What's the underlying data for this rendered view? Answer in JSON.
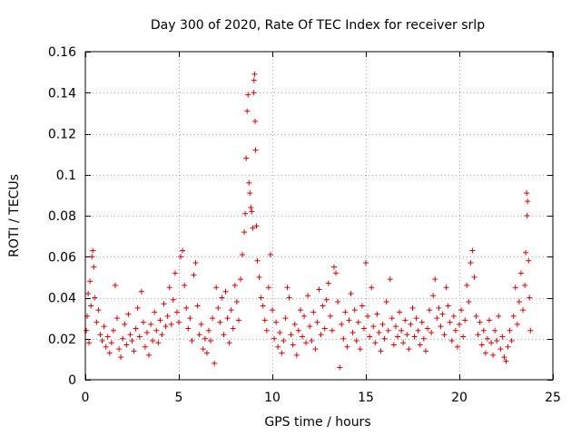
{
  "chart_data": {
    "type": "scatter",
    "title": "Day 300 of 2020, Rate Of TEC Index for receiver srlp",
    "xlabel": "GPS time / hours",
    "ylabel": "ROTI / TECUs",
    "xlim": [
      0,
      25
    ],
    "ylim": [
      0,
      0.16
    ],
    "xticks": [
      0,
      5,
      10,
      15,
      20,
      25
    ],
    "xtick_labels": [
      "0",
      "5",
      "10",
      "15",
      "20",
      "25"
    ],
    "yticks": [
      0,
      0.02,
      0.04,
      0.06,
      0.08,
      0.1,
      0.12,
      0.14,
      0.16
    ],
    "ytick_labels": [
      "0",
      "0.02",
      "0.04",
      "0.06",
      "0.08",
      "0.1",
      "0.12",
      "0.14",
      "0.16"
    ],
    "grid": true,
    "marker": "+",
    "series": [
      {
        "name": "ROTI",
        "color": "#e00000",
        "points": [
          [
            0.05,
            0.024
          ],
          [
            0.1,
            0.031
          ],
          [
            0.15,
            0.042
          ],
          [
            0.2,
            0.018
          ],
          [
            0.25,
            0.048
          ],
          [
            0.3,
            0.036
          ],
          [
            0.35,
            0.06
          ],
          [
            0.4,
            0.063
          ],
          [
            0.45,
            0.055
          ],
          [
            0.5,
            0.04
          ],
          [
            0.6,
            0.028
          ],
          [
            0.7,
            0.034
          ],
          [
            0.8,
            0.022
          ],
          [
            0.9,
            0.019
          ],
          [
            1.0,
            0.026
          ],
          [
            1.1,
            0.016
          ],
          [
            1.2,
            0.021
          ],
          [
            1.3,
            0.013
          ],
          [
            1.4,
            0.018
          ],
          [
            1.5,
            0.024
          ],
          [
            1.6,
            0.046
          ],
          [
            1.7,
            0.03
          ],
          [
            1.8,
            0.015
          ],
          [
            1.9,
            0.011
          ],
          [
            2.0,
            0.02
          ],
          [
            2.1,
            0.027
          ],
          [
            2.2,
            0.017
          ],
          [
            2.3,
            0.032
          ],
          [
            2.4,
            0.022
          ],
          [
            2.5,
            0.019
          ],
          [
            2.6,
            0.014
          ],
          [
            2.7,
            0.025
          ],
          [
            2.8,
            0.035
          ],
          [
            2.9,
            0.021
          ],
          [
            3.0,
            0.043
          ],
          [
            3.1,
            0.028
          ],
          [
            3.2,
            0.016
          ],
          [
            3.3,
            0.023
          ],
          [
            3.4,
            0.012
          ],
          [
            3.5,
            0.027
          ],
          [
            3.6,
            0.019
          ],
          [
            3.7,
            0.033
          ],
          [
            3.8,
            0.024
          ],
          [
            3.9,
            0.018
          ],
          [
            4.0,
            0.029
          ],
          [
            4.1,
            0.022
          ],
          [
            4.2,
            0.037
          ],
          [
            4.3,
            0.026
          ],
          [
            4.4,
            0.031
          ],
          [
            4.5,
            0.045
          ],
          [
            4.6,
            0.027
          ],
          [
            4.7,
            0.039
          ],
          [
            4.8,
            0.052
          ],
          [
            4.9,
            0.033
          ],
          [
            5.0,
            0.028
          ],
          [
            5.1,
            0.06
          ],
          [
            5.2,
            0.063
          ],
          [
            5.3,
            0.046
          ],
          [
            5.4,
            0.035
          ],
          [
            5.5,
            0.025
          ],
          [
            5.6,
            0.03
          ],
          [
            5.7,
            0.019
          ],
          [
            5.8,
            0.051
          ],
          [
            5.9,
            0.057
          ],
          [
            6.0,
            0.036
          ],
          [
            6.1,
            0.022
          ],
          [
            6.2,
            0.027
          ],
          [
            6.3,
            0.015
          ],
          [
            6.4,
            0.02
          ],
          [
            6.5,
            0.013
          ],
          [
            6.6,
            0.024
          ],
          [
            6.7,
            0.019
          ],
          [
            6.8,
            0.03
          ],
          [
            6.9,
            0.008
          ],
          [
            7.0,
            0.045
          ],
          [
            7.1,
            0.035
          ],
          [
            7.2,
            0.028
          ],
          [
            7.3,
            0.04
          ],
          [
            7.4,
            0.022
          ],
          [
            7.5,
            0.043
          ],
          [
            7.6,
            0.03
          ],
          [
            7.7,
            0.018
          ],
          [
            7.8,
            0.034
          ],
          [
            7.9,
            0.025
          ],
          [
            8.0,
            0.046
          ],
          [
            8.1,
            0.038
          ],
          [
            8.2,
            0.029
          ],
          [
            8.3,
            0.049
          ],
          [
            8.4,
            0.061
          ],
          [
            8.5,
            0.072
          ],
          [
            8.55,
            0.081
          ],
          [
            8.6,
            0.108
          ],
          [
            8.65,
            0.131
          ],
          [
            8.7,
            0.139
          ],
          [
            8.75,
            0.096
          ],
          [
            8.8,
            0.091
          ],
          [
            8.85,
            0.084
          ],
          [
            8.9,
            0.082
          ],
          [
            8.95,
            0.074
          ],
          [
            9.0,
            0.14
          ],
          [
            9.02,
            0.146
          ],
          [
            9.05,
            0.149
          ],
          [
            9.08,
            0.126
          ],
          [
            9.1,
            0.112
          ],
          [
            9.15,
            0.075
          ],
          [
            9.2,
            0.058
          ],
          [
            9.3,
            0.05
          ],
          [
            9.4,
            0.04
          ],
          [
            9.5,
            0.036
          ],
          [
            9.6,
            0.029
          ],
          [
            9.7,
            0.024
          ],
          [
            9.8,
            0.045
          ],
          [
            9.9,
            0.061
          ],
          [
            10.0,
            0.034
          ],
          [
            10.1,
            0.02
          ],
          [
            10.2,
            0.028
          ],
          [
            10.3,
            0.016
          ],
          [
            10.4,
            0.023
          ],
          [
            10.5,
            0.013
          ],
          [
            10.6,
            0.019
          ],
          [
            10.7,
            0.03
          ],
          [
            10.8,
            0.045
          ],
          [
            10.9,
            0.04
          ],
          [
            11.0,
            0.022
          ],
          [
            11.1,
            0.017
          ],
          [
            11.2,
            0.027
          ],
          [
            11.3,
            0.012
          ],
          [
            11.4,
            0.024
          ],
          [
            11.5,
            0.034
          ],
          [
            11.6,
            0.021
          ],
          [
            11.7,
            0.031
          ],
          [
            11.8,
            0.018
          ],
          [
            11.9,
            0.041
          ],
          [
            12.0,
            0.026
          ],
          [
            12.1,
            0.019
          ],
          [
            12.2,
            0.033
          ],
          [
            12.3,
            0.015
          ],
          [
            12.4,
            0.028
          ],
          [
            12.5,
            0.044
          ],
          [
            12.6,
            0.022
          ],
          [
            12.7,
            0.036
          ],
          [
            12.8,
            0.025
          ],
          [
            12.9,
            0.039
          ],
          [
            13.0,
            0.047
          ],
          [
            13.1,
            0.031
          ],
          [
            13.2,
            0.024
          ],
          [
            13.3,
            0.055
          ],
          [
            13.4,
            0.052
          ],
          [
            13.5,
            0.038
          ],
          [
            13.6,
            0.006
          ],
          [
            13.7,
            0.027
          ],
          [
            13.8,
            0.02
          ],
          [
            13.9,
            0.033
          ],
          [
            14.0,
            0.016
          ],
          [
            14.1,
            0.029
          ],
          [
            14.2,
            0.042
          ],
          [
            14.3,
            0.023
          ],
          [
            14.4,
            0.034
          ],
          [
            14.5,
            0.019
          ],
          [
            14.6,
            0.028
          ],
          [
            14.7,
            0.015
          ],
          [
            14.8,
            0.036
          ],
          [
            14.9,
            0.025
          ],
          [
            15.0,
            0.057
          ],
          [
            15.1,
            0.031
          ],
          [
            15.2,
            0.021
          ],
          [
            15.3,
            0.045
          ],
          [
            15.4,
            0.026
          ],
          [
            15.5,
            0.018
          ],
          [
            15.6,
            0.032
          ],
          [
            15.7,
            0.023
          ],
          [
            15.8,
            0.014
          ],
          [
            15.9,
            0.027
          ],
          [
            16.0,
            0.02
          ],
          [
            16.1,
            0.038
          ],
          [
            16.2,
            0.024
          ],
          [
            16.3,
            0.049
          ],
          [
            16.4,
            0.03
          ],
          [
            16.5,
            0.017
          ],
          [
            16.6,
            0.026
          ],
          [
            16.7,
            0.021
          ],
          [
            16.8,
            0.033
          ],
          [
            16.9,
            0.024
          ],
          [
            17.0,
            0.018
          ],
          [
            17.1,
            0.029
          ],
          [
            17.2,
            0.022
          ],
          [
            17.3,
            0.015
          ],
          [
            17.4,
            0.027
          ],
          [
            17.5,
            0.035
          ],
          [
            17.6,
            0.021
          ],
          [
            17.7,
            0.03
          ],
          [
            17.8,
            0.024
          ],
          [
            17.9,
            0.017
          ],
          [
            18.0,
            0.028
          ],
          [
            18.1,
            0.02
          ],
          [
            18.2,
            0.014
          ],
          [
            18.3,
            0.025
          ],
          [
            18.4,
            0.034
          ],
          [
            18.5,
            0.023
          ],
          [
            18.6,
            0.041
          ],
          [
            18.7,
            0.049
          ],
          [
            18.8,
            0.03
          ],
          [
            18.9,
            0.035
          ],
          [
            19.0,
            0.026
          ],
          [
            19.1,
            0.032
          ],
          [
            19.2,
            0.022
          ],
          [
            19.3,
            0.045
          ],
          [
            19.4,
            0.036
          ],
          [
            19.5,
            0.028
          ],
          [
            19.6,
            0.019
          ],
          [
            19.7,
            0.031
          ],
          [
            19.8,
            0.024
          ],
          [
            19.9,
            0.016
          ],
          [
            20.0,
            0.027
          ],
          [
            20.1,
            0.034
          ],
          [
            20.2,
            0.021
          ],
          [
            20.3,
            0.029
          ],
          [
            20.4,
            0.046
          ],
          [
            20.5,
            0.038
          ],
          [
            20.6,
            0.057
          ],
          [
            20.7,
            0.063
          ],
          [
            20.8,
            0.05
          ],
          [
            20.9,
            0.031
          ],
          [
            21.0,
            0.022
          ],
          [
            21.1,
            0.028
          ],
          [
            21.2,
            0.017
          ],
          [
            21.3,
            0.024
          ],
          [
            21.4,
            0.013
          ],
          [
            21.5,
            0.02
          ],
          [
            21.6,
            0.029
          ],
          [
            21.7,
            0.018
          ],
          [
            21.8,
            0.012
          ],
          [
            21.9,
            0.024
          ],
          [
            22.0,
            0.019
          ],
          [
            22.1,
            0.031
          ],
          [
            22.2,
            0.015
          ],
          [
            22.3,
            0.021
          ],
          [
            22.4,
            0.011
          ],
          [
            22.5,
            0.009
          ],
          [
            22.6,
            0.016
          ],
          [
            22.7,
            0.024
          ],
          [
            22.8,
            0.019
          ],
          [
            22.9,
            0.031
          ],
          [
            23.0,
            0.045
          ],
          [
            23.1,
            0.027
          ],
          [
            23.2,
            0.038
          ],
          [
            23.3,
            0.052
          ],
          [
            23.4,
            0.034
          ],
          [
            23.5,
            0.046
          ],
          [
            23.55,
            0.062
          ],
          [
            23.6,
            0.091
          ],
          [
            23.62,
            0.08
          ],
          [
            23.65,
            0.087
          ],
          [
            23.7,
            0.058
          ],
          [
            23.75,
            0.04
          ],
          [
            23.8,
            0.024
          ]
        ]
      }
    ]
  }
}
